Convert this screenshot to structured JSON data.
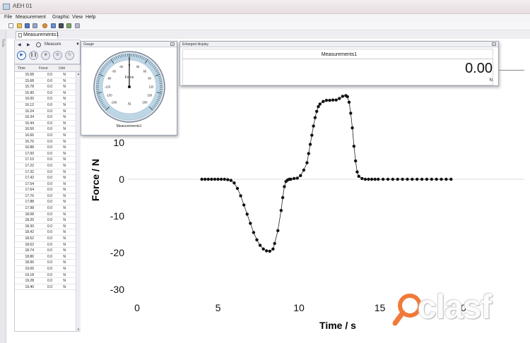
{
  "window": {
    "title": "AEH 01"
  },
  "menu": [
    "File",
    "Measurement",
    "Graphic",
    "View",
    "Help"
  ],
  "side_label": "Tools",
  "tab": {
    "label": "Measurements1"
  },
  "control": {
    "mode": "Measure",
    "prev": "◀",
    "next": "▶",
    "dropdown": "▼"
  },
  "table": {
    "headers": [
      "Time",
      "Force",
      "Unit"
    ],
    "rows": [
      [
        "15.58",
        "0.0",
        "N"
      ],
      [
        "15.68",
        "0.0",
        "N"
      ],
      [
        "15.78",
        "0.0",
        "N"
      ],
      [
        "15.90",
        "0.0",
        "N"
      ],
      [
        "16.00",
        "0.0",
        "N"
      ],
      [
        "16.12",
        "0.0",
        "N"
      ],
      [
        "16.24",
        "0.0",
        "N"
      ],
      [
        "16.34",
        "0.0",
        "N"
      ],
      [
        "16.44",
        "0.0",
        "N"
      ],
      [
        "16.56",
        "0.0",
        "N"
      ],
      [
        "16.66",
        "0.0",
        "N"
      ],
      [
        "16.76",
        "0.0",
        "N"
      ],
      [
        "16.88",
        "0.0",
        "N"
      ],
      [
        "17.00",
        "0.0",
        "N"
      ],
      [
        "17.10",
        "0.0",
        "N"
      ],
      [
        "17.22",
        "0.0",
        "N"
      ],
      [
        "17.32",
        "0.0",
        "N"
      ],
      [
        "17.42",
        "0.0",
        "N"
      ],
      [
        "17.54",
        "0.0",
        "N"
      ],
      [
        "17.64",
        "0.0",
        "N"
      ],
      [
        "17.76",
        "0.0",
        "N"
      ],
      [
        "17.88",
        "0.0",
        "N"
      ],
      [
        "17.98",
        "0.0",
        "N"
      ],
      [
        "18.08",
        "0.0",
        "N"
      ],
      [
        "18.20",
        "0.0",
        "N"
      ],
      [
        "18.30",
        "0.0",
        "N"
      ],
      [
        "18.42",
        "0.0",
        "N"
      ],
      [
        "18.52",
        "0.0",
        "N"
      ],
      [
        "18.62",
        "0.0",
        "N"
      ],
      [
        "18.74",
        "0.0",
        "N"
      ],
      [
        "18.86",
        "0.0",
        "N"
      ],
      [
        "18.96",
        "0.0",
        "N"
      ],
      [
        "19.06",
        "0.0",
        "N"
      ],
      [
        "19.18",
        "0.0",
        "N"
      ],
      [
        "19.28",
        "0.0",
        "N"
      ],
      [
        "19.40",
        "0.0",
        "N"
      ]
    ]
  },
  "gauge": {
    "title": "Gauge",
    "quantity": "Force",
    "unit": "N",
    "caption": "Measurements1",
    "min": -200,
    "max": 200,
    "value": 0,
    "tick_labels": [
      "-200",
      "-150",
      "-120",
      "-90",
      "-60",
      "-30",
      "0",
      "30",
      "60",
      "90",
      "120",
      "150",
      "200"
    ]
  },
  "enlarged": {
    "title": "Enlarged display",
    "name": "Measurements1",
    "value": "0.00",
    "unit": "N"
  },
  "chart_data": {
    "type": "scatter",
    "xlabel": "Time / s",
    "ylabel": "Force / N",
    "xlim": [
      0,
      22
    ],
    "ylim": [
      -30,
      20
    ],
    "xticks": [
      0,
      5,
      10,
      15,
      20
    ],
    "yticks": [
      -30,
      -20,
      -10,
      0,
      10
    ],
    "grid": false,
    "zero_line": true,
    "point_color": "#111111",
    "series": [
      {
        "connect": true,
        "x": [
          4.0,
          4.2,
          4.4,
          4.6,
          4.8,
          5.0,
          5.2,
          5.4,
          5.6,
          5.8,
          6.0,
          6.2,
          6.4,
          6.6,
          6.8,
          7.0,
          7.2,
          7.4,
          7.6,
          7.8,
          8.0,
          8.2,
          8.4,
          8.5,
          8.7,
          8.9,
          9.0,
          9.1,
          9.2,
          9.3,
          9.4,
          9.5,
          9.7,
          9.9,
          10.1,
          10.3,
          10.5,
          10.6,
          10.7,
          10.8,
          10.9,
          11.0,
          11.1,
          11.2,
          11.3,
          11.5,
          11.7,
          11.9,
          12.1,
          12.3,
          12.5,
          12.7,
          12.9,
          13.0,
          13.1,
          13.2,
          13.3,
          13.4,
          13.5,
          13.6,
          13.7,
          13.9,
          14.1,
          14.3,
          14.5,
          14.7,
          14.9,
          15.2,
          15.5,
          15.8,
          16.1,
          16.4,
          16.7,
          17.0,
          17.3,
          17.6,
          17.9,
          18.2,
          18.5,
          18.8,
          19.1,
          19.4
        ],
        "y": [
          0,
          0,
          0,
          0,
          0,
          0,
          0,
          0,
          -0.1,
          -0.3,
          -1.0,
          -2.5,
          -4.5,
          -7.0,
          -9.5,
          -12.0,
          -14.5,
          -16.5,
          -18.0,
          -19.0,
          -19.5,
          -19.6,
          -19.0,
          -17.5,
          -14.0,
          -8.5,
          -5.0,
          -2.0,
          -0.6,
          -0.2,
          0,
          0,
          0.2,
          0.3,
          1.0,
          2.5,
          4.5,
          7.0,
          9.5,
          12.0,
          14.5,
          16.8,
          18.5,
          19.8,
          20.5,
          21.2,
          21.5,
          21.5,
          21.6,
          21.6,
          22.0,
          22.6,
          22.8,
          22.5,
          21.0,
          18.0,
          14.0,
          9.0,
          5.0,
          2.0,
          0.8,
          0.2,
          0,
          0,
          0,
          0,
          0,
          0,
          0,
          0,
          0,
          0,
          0,
          0,
          0,
          0,
          0,
          0,
          0,
          0,
          0,
          0
        ]
      }
    ]
  },
  "watermark": {
    "text": "clasf"
  }
}
